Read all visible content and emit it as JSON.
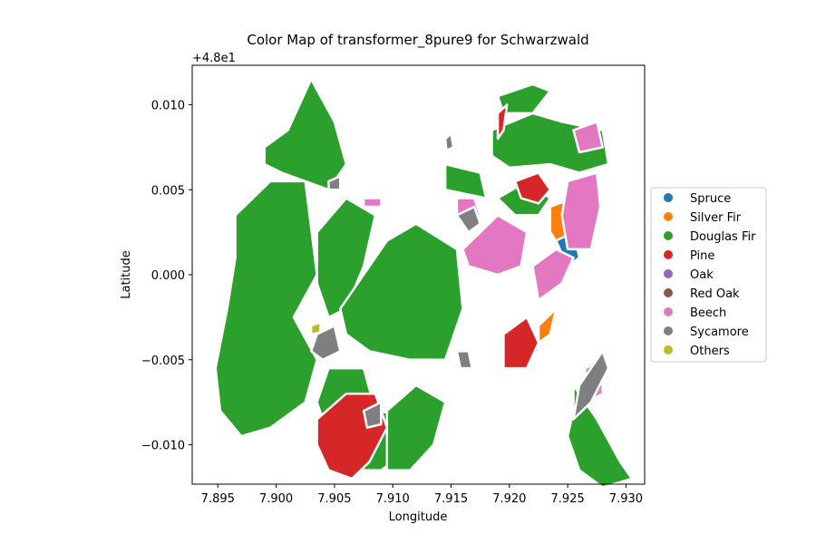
{
  "chart_data": {
    "type": "choropleth_map",
    "title": "Color Map of transformer_8pure9 for Schwarzwald",
    "xlabel": "Longitude",
    "ylabel": "Latitude",
    "y_offset_label": "+4.8e1",
    "xlim": [
      7.8928,
      7.9316
    ],
    "ylim": [
      47.98768,
      48.01232
    ],
    "x_ticks": [
      "7.895",
      "7.900",
      "7.905",
      "7.910",
      "7.915",
      "7.920",
      "7.925",
      "7.930"
    ],
    "x_tick_values": [
      7.895,
      7.9,
      7.905,
      7.91,
      7.915,
      7.92,
      7.925,
      7.93
    ],
    "y_ticks": [
      "0.010",
      "0.005",
      "0.000",
      "−0.005",
      "−0.010"
    ],
    "y_tick_values": [
      48.01,
      48.005,
      48.0,
      47.995,
      47.99
    ],
    "grid": false,
    "legend_position": "right",
    "legend": [
      {
        "label": "Spruce",
        "color": "#1f77b4"
      },
      {
        "label": "Silver Fir",
        "color": "#ff7f0e"
      },
      {
        "label": "Douglas Fir",
        "color": "#2ca02c"
      },
      {
        "label": "Pine",
        "color": "#d62728"
      },
      {
        "label": "Oak",
        "color": "#9467bd"
      },
      {
        "label": "Red Oak",
        "color": "#8c564b"
      },
      {
        "label": "Beech",
        "color": "#e377c2"
      },
      {
        "label": "Sycamore",
        "color": "#7f7f7f"
      },
      {
        "label": "Others",
        "color": "#bcbd22"
      }
    ],
    "regions": [
      {
        "class": "Douglas Fir",
        "points": [
          [
            7.8965,
            48.0035
          ],
          [
            7.8995,
            48.0055
          ],
          [
            7.9025,
            48.0055
          ],
          [
            7.9035,
            48.0
          ],
          [
            7.9015,
            47.9975
          ],
          [
            7.9035,
            47.995
          ],
          [
            7.9025,
            47.9925
          ],
          [
            7.8995,
            47.991
          ],
          [
            7.897,
            47.9905
          ],
          [
            7.8952,
            47.992
          ],
          [
            7.8948,
            47.9945
          ],
          [
            7.8958,
            47.998
          ],
          [
            7.8965,
            48.001
          ]
        ]
      },
      {
        "class": "Douglas Fir",
        "points": [
          [
            7.899,
            48.0075
          ],
          [
            7.901,
            48.0085
          ],
          [
            7.903,
            48.0115
          ],
          [
            7.905,
            48.009
          ],
          [
            7.906,
            48.0065
          ],
          [
            7.9045,
            48.005
          ],
          [
            7.9025,
            48.0055
          ],
          [
            7.9005,
            48.006
          ],
          [
            7.899,
            48.0065
          ]
        ]
      },
      {
        "class": "Douglas Fir",
        "points": [
          [
            7.9035,
            48.0025
          ],
          [
            7.906,
            48.0045
          ],
          [
            7.9085,
            48.0035
          ],
          [
            7.9075,
            48.0005
          ],
          [
            7.906,
            47.998
          ],
          [
            7.9045,
            47.9975
          ],
          [
            7.9035,
            47.9995
          ]
        ]
      },
      {
        "class": "Douglas Fir",
        "points": [
          [
            7.9055,
            47.998
          ],
          [
            7.9095,
            48.002
          ],
          [
            7.912,
            48.003
          ],
          [
            7.9155,
            48.0015
          ],
          [
            7.916,
            47.998
          ],
          [
            7.9145,
            47.995
          ],
          [
            7.9115,
            47.995
          ],
          [
            7.908,
            47.9955
          ],
          [
            7.906,
            47.9965
          ]
        ]
      },
      {
        "class": "Douglas Fir",
        "points": [
          [
            7.9045,
            47.9945
          ],
          [
            7.9075,
            47.9945
          ],
          [
            7.9085,
            47.992
          ],
          [
            7.9105,
            47.9918
          ],
          [
            7.911,
            47.9895
          ],
          [
            7.909,
            47.9885
          ],
          [
            7.9065,
            47.9885
          ],
          [
            7.9045,
            47.9905
          ],
          [
            7.9035,
            47.9925
          ]
        ]
      },
      {
        "class": "Douglas Fir",
        "points": [
          [
            7.9095,
            47.992
          ],
          [
            7.912,
            47.9935
          ],
          [
            7.9145,
            47.9925
          ],
          [
            7.9135,
            47.99
          ],
          [
            7.9115,
            47.9885
          ],
          [
            7.9095,
            47.9885
          ]
        ]
      },
      {
        "class": "Douglas Fir",
        "points": [
          [
            7.9145,
            48.0065
          ],
          [
            7.9175,
            48.006
          ],
          [
            7.918,
            48.0045
          ],
          [
            7.9145,
            48.005
          ]
        ]
      },
      {
        "class": "Douglas Fir",
        "points": [
          [
            7.9185,
            48.0085
          ],
          [
            7.922,
            48.0095
          ],
          [
            7.9245,
            48.009
          ],
          [
            7.928,
            48.0085
          ],
          [
            7.9285,
            48.0065
          ],
          [
            7.926,
            48.006
          ],
          [
            7.9235,
            48.0065
          ],
          [
            7.92,
            48.0063
          ],
          [
            7.9185,
            48.007
          ]
        ]
      },
      {
        "class": "Douglas Fir",
        "points": [
          [
            7.919,
            48.0045
          ],
          [
            7.9215,
            48.0055
          ],
          [
            7.9235,
            48.0045
          ],
          [
            7.9225,
            48.0035
          ],
          [
            7.9205,
            48.0035
          ]
        ]
      },
      {
        "class": "Douglas Fir",
        "points": [
          [
            7.919,
            48.0105
          ],
          [
            7.922,
            48.0112
          ],
          [
            7.9235,
            48.0108
          ],
          [
            7.922,
            48.0095
          ],
          [
            7.9195,
            48.0095
          ]
        ]
      },
      {
        "class": "Douglas Fir",
        "points": [
          [
            7.9195,
            47.9965
          ],
          [
            7.922,
            47.997
          ],
          [
            7.9225,
            47.9955
          ],
          [
            7.92,
            47.995
          ]
        ]
      },
      {
        "class": "Douglas Fir",
        "points": [
          [
            7.9255,
            47.9935
          ],
          [
            7.9275,
            47.9915
          ],
          [
            7.9295,
            47.989
          ],
          [
            7.9305,
            47.988
          ],
          [
            7.928,
            47.9875
          ],
          [
            7.926,
            47.9885
          ],
          [
            7.925,
            47.9905
          ],
          [
            7.9255,
            47.992
          ]
        ]
      },
      {
        "class": "Pine",
        "points": [
          [
            7.9035,
            47.9915
          ],
          [
            7.906,
            47.993
          ],
          [
            7.9085,
            47.993
          ],
          [
            7.9095,
            47.991
          ],
          [
            7.908,
            47.989
          ],
          [
            7.9065,
            47.988
          ],
          [
            7.9045,
            47.9885
          ],
          [
            7.9035,
            47.99
          ]
        ]
      },
      {
        "class": "Pine",
        "points": [
          [
            7.9195,
            47.9965
          ],
          [
            7.9215,
            47.9975
          ],
          [
            7.9225,
            47.996
          ],
          [
            7.9215,
            47.9945
          ],
          [
            7.9195,
            47.9945
          ]
        ]
      },
      {
        "class": "Pine",
        "points": [
          [
            7.9205,
            48.0055
          ],
          [
            7.9225,
            48.006
          ],
          [
            7.9235,
            48.005
          ],
          [
            7.9225,
            48.0042
          ],
          [
            7.921,
            48.0045
          ]
        ]
      },
      {
        "class": "Pine",
        "points": [
          [
            7.919,
            48.0095
          ],
          [
            7.9198,
            48.01
          ],
          [
            7.9195,
            48.0085
          ],
          [
            7.919,
            48.008
          ]
        ]
      },
      {
        "class": "Silver Fir",
        "points": [
          [
            7.9235,
            48.004
          ],
          [
            7.9255,
            48.0045
          ],
          [
            7.926,
            48.0025
          ],
          [
            7.9245,
            48.0015
          ],
          [
            7.9235,
            48.0025
          ]
        ]
      },
      {
        "class": "Silver Fir",
        "points": [
          [
            7.9225,
            47.997
          ],
          [
            7.924,
            47.998
          ],
          [
            7.9235,
            47.9965
          ],
          [
            7.9225,
            47.996
          ]
        ]
      },
      {
        "class": "Spruce",
        "points": [
          [
            7.924,
            48.002
          ],
          [
            7.9255,
            48.0025
          ],
          [
            7.926,
            48.001
          ],
          [
            7.925,
            48.0005
          ]
        ]
      },
      {
        "class": "Beech",
        "points": [
          [
            7.9155,
            48.0045
          ],
          [
            7.917,
            48.0045
          ],
          [
            7.9175,
            48.0035
          ],
          [
            7.916,
            48.003
          ],
          [
            7.9155,
            48.0035
          ]
        ]
      },
      {
        "class": "Beech",
        "points": [
          [
            7.916,
            48.0015
          ],
          [
            7.919,
            48.0035
          ],
          [
            7.9215,
            48.0025
          ],
          [
            7.921,
            48.0005
          ],
          [
            7.919,
            48.0
          ],
          [
            7.9165,
            48.0005
          ]
        ]
      },
      {
        "class": "Beech",
        "points": [
          [
            7.925,
            48.0055
          ],
          [
            7.9275,
            48.006
          ],
          [
            7.9278,
            48.004
          ],
          [
            7.927,
            48.0015
          ],
          [
            7.925,
            48.0015
          ],
          [
            7.9245,
            48.0035
          ]
        ]
      },
      {
        "class": "Beech",
        "points": [
          [
            7.922,
            48.0005
          ],
          [
            7.924,
            48.0015
          ],
          [
            7.9255,
            48.001
          ],
          [
            7.9245,
            47.9995
          ],
          [
            7.9225,
            47.9985
          ]
        ]
      },
      {
        "class": "Beech",
        "points": [
          [
            7.9255,
            48.0085
          ],
          [
            7.9275,
            48.009
          ],
          [
            7.928,
            48.0075
          ],
          [
            7.926,
            48.0072
          ]
        ]
      },
      {
        "class": "Beech",
        "points": [
          [
            7.9265,
            47.9945
          ],
          [
            7.928,
            47.995
          ],
          [
            7.928,
            47.993
          ],
          [
            7.9265,
            47.9925
          ]
        ]
      },
      {
        "class": "Beech",
        "points": [
          [
            7.9075,
            48.0045
          ],
          [
            7.909,
            48.0045
          ],
          [
            7.909,
            48.004
          ],
          [
            7.9075,
            48.004
          ]
        ]
      },
      {
        "class": "Sycamore",
        "points": [
          [
            7.9035,
            47.9965
          ],
          [
            7.905,
            47.997
          ],
          [
            7.9055,
            47.9955
          ],
          [
            7.904,
            47.995
          ],
          [
            7.903,
            47.9955
          ]
        ]
      },
      {
        "class": "Sycamore",
        "points": [
          [
            7.926,
            47.9935
          ],
          [
            7.928,
            47.9955
          ],
          [
            7.9285,
            47.9945
          ],
          [
            7.927,
            47.9925
          ],
          [
            7.9255,
            47.9915
          ]
        ]
      },
      {
        "class": "Sycamore",
        "points": [
          [
            7.9155,
            48.0035
          ],
          [
            7.917,
            48.004
          ],
          [
            7.9175,
            48.003
          ],
          [
            7.9165,
            48.0025
          ]
        ]
      },
      {
        "class": "Sycamore",
        "points": [
          [
            7.9045,
            48.0055
          ],
          [
            7.9055,
            48.0058
          ],
          [
            7.9055,
            48.005
          ],
          [
            7.9045,
            48.005
          ]
        ]
      },
      {
        "class": "Sycamore",
        "points": [
          [
            7.9075,
            47.992
          ],
          [
            7.909,
            47.9925
          ],
          [
            7.909,
            47.9912
          ],
          [
            7.9078,
            47.991
          ]
        ]
      },
      {
        "class": "Sycamore",
        "points": [
          [
            7.9155,
            47.9955
          ],
          [
            7.9165,
            47.9955
          ],
          [
            7.9168,
            47.9945
          ],
          [
            7.9158,
            47.9945
          ]
        ]
      },
      {
        "class": "Sycamore",
        "points": [
          [
            7.9145,
            48.008
          ],
          [
            7.915,
            48.0083
          ],
          [
            7.9152,
            48.0075
          ],
          [
            7.9146,
            48.0073
          ]
        ]
      },
      {
        "class": "Others",
        "points": [
          [
            7.903,
            47.997
          ],
          [
            7.9038,
            47.9972
          ],
          [
            7.9038,
            47.9966
          ],
          [
            7.903,
            47.9965
          ]
        ]
      }
    ]
  }
}
